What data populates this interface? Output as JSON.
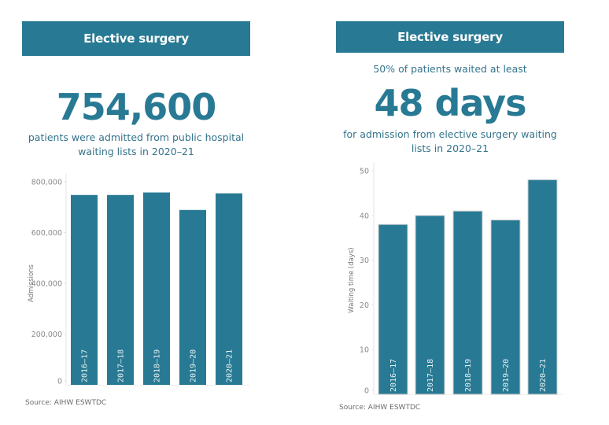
{
  "colors": {
    "accent": "#287a94",
    "bar_outline": "#d0d0d0",
    "axis": "#e6e6e6"
  },
  "left_panel": {
    "header": "Elective surgery",
    "headline": "754,600",
    "subtext_line1": "patients were admitted from public hospital",
    "subtext_line2": "waiting lists in 2020–21",
    "source": "Source: AIHW ESWTDC"
  },
  "right_panel": {
    "header": "Elective surgery",
    "pretext": "50% of patients waited at least",
    "headline": "48 days",
    "subtext_line1": "for admission from elective surgery waiting",
    "subtext_line2": "lists in 2020–21",
    "source": "Source: AIHW ESWTDC"
  },
  "chart_data": [
    {
      "type": "bar",
      "title": "",
      "xlabel": "",
      "ylabel": "Admissions",
      "categories": [
        "2016–17",
        "2017–18",
        "2018–19",
        "2019–20",
        "2020–21"
      ],
      "values": [
        748000,
        748000,
        758000,
        689000,
        754600
      ],
      "ylim": [
        0,
        800000
      ],
      "yticks": [
        0,
        200000,
        400000,
        600000,
        800000
      ],
      "ytick_labels": [
        "0",
        "200,000",
        "400,000",
        "600,000",
        "800,000"
      ],
      "grid": false,
      "legend": "none",
      "category_labels_inside_bars": true
    },
    {
      "type": "bar",
      "title": "",
      "xlabel": "",
      "ylabel": "Waiting time (days)",
      "categories": [
        "2016–17",
        "2017–18",
        "2018–19",
        "2019–20",
        "2020–21"
      ],
      "values": [
        38,
        40,
        41,
        39,
        48
      ],
      "ylim": [
        0,
        50
      ],
      "yticks": [
        0,
        10,
        20,
        30,
        40,
        50
      ],
      "ytick_labels": [
        "0",
        "10",
        "20",
        "30",
        "40",
        "50"
      ],
      "grid": false,
      "legend": "none",
      "category_labels_inside_bars": true
    }
  ]
}
